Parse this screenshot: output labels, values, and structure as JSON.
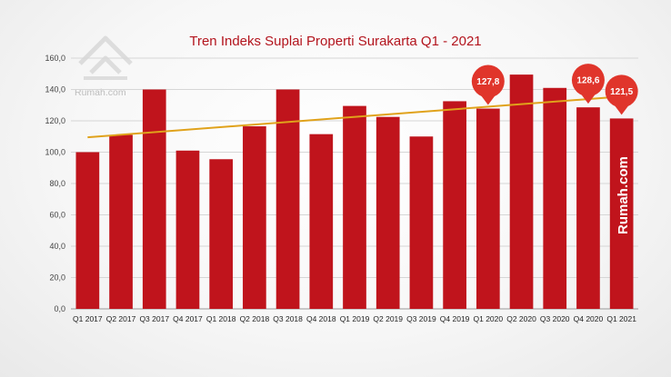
{
  "brand": {
    "logo_text": "Rumah.com",
    "vertical_text": "Rumah.com"
  },
  "colors": {
    "bar": "#c0141c",
    "trendline": "#e0a21b",
    "callout": "#e0352b",
    "title": "#b3141d"
  },
  "chart_data": {
    "type": "bar",
    "title": "Tren Indeks Suplai Properti Surakarta Q1 - 2021",
    "xlabel": "",
    "ylabel": "",
    "ylim": [
      0,
      160
    ],
    "yticks": [
      "0,0",
      "20,0",
      "40,0",
      "60,0",
      "80,0",
      "100,0",
      "120,0",
      "140,0",
      "160,0"
    ],
    "grid": true,
    "legend": "none",
    "categories": [
      "Q1 2017",
      "Q2 2017",
      "Q3 2017",
      "Q4 2017",
      "Q1 2018",
      "Q2 2018",
      "Q3 2018",
      "Q4 2018",
      "Q1 2019",
      "Q2 2019",
      "Q3 2019",
      "Q4 2019",
      "Q1 2020",
      "Q2 2020",
      "Q3 2020",
      "Q4 2020",
      "Q1 2021"
    ],
    "series": [
      {
        "values": [
          100.0,
          111.0,
          140.0,
          101.0,
          95.5,
          116.5,
          140.0,
          111.5,
          129.5,
          122.5,
          110.0,
          132.5,
          127.8,
          149.5,
          141.0,
          128.6,
          121.5
        ]
      }
    ],
    "trendline": {
      "type": "linear",
      "start": 109.5,
      "end": 135.5
    },
    "callouts": [
      {
        "category": "Q1 2020",
        "label": "127,8"
      },
      {
        "category": "Q4 2020",
        "label": "128,6"
      },
      {
        "category": "Q1 2021",
        "label": "121,5"
      }
    ]
  }
}
